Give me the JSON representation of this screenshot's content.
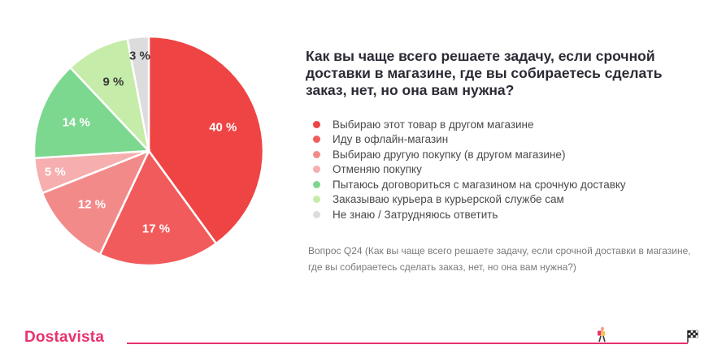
{
  "chart_data": {
    "type": "pie",
    "title": "Как вы чаще всего решаете задачу, если срочной доставки в магазине, где вы собираетесь сделать заказ, нет, но она вам нужна?",
    "slices": [
      {
        "label": "Выбираю этот товар в другом магазине",
        "value": 40,
        "value_label": "40 %",
        "color": "#ef4444"
      },
      {
        "label": "Иду в офлайн-магазин",
        "value": 17,
        "value_label": "17 %",
        "color": "#f25b5b"
      },
      {
        "label": "Выбираю другую покупку (в другом магазине)",
        "value": 12,
        "value_label": "12 %",
        "color": "#f38a8a"
      },
      {
        "label": "Отменяю покупку",
        "value": 5,
        "value_label": "5 %",
        "color": "#f6aeae"
      },
      {
        "label": "Пытаюсь договориться с магазином на срочную доставку",
        "value": 14,
        "value_label": "14 %",
        "color": "#7dd88f"
      },
      {
        "label": "Заказываю курьера в курьерской службе сам",
        "value": 9,
        "value_label": "9 %",
        "color": "#c5eca8"
      },
      {
        "label": "Не знаю / Затрудняюсь ответить",
        "value": 3,
        "value_label": "3 %",
        "color": "#dcdcdc"
      }
    ],
    "legend_placement": "right"
  },
  "note": "Вопрос Q24 (Как вы чаще всего решаете задачу, если срочной доставки в магазине, где вы собираетесь сделать заказ, нет, но она вам нужна?)",
  "footer": {
    "brand": "Dostavista",
    "brand_color": "#e8326c",
    "icons": [
      "courier-icon",
      "finish-flag-icon"
    ]
  }
}
